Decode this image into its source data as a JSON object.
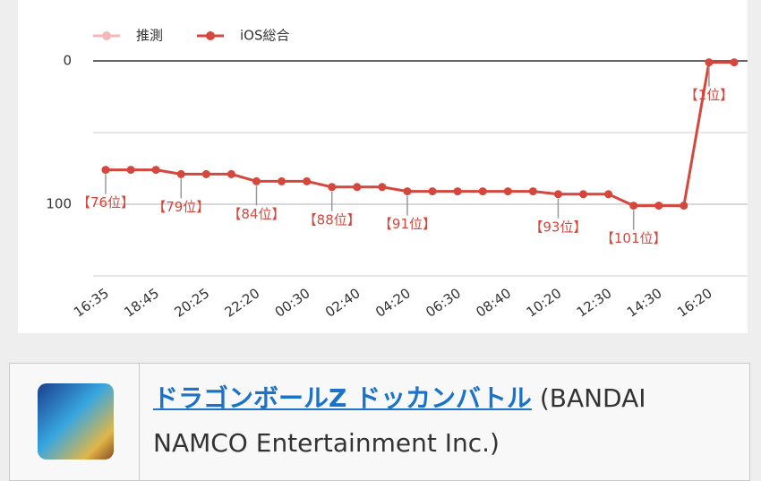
{
  "chart_data": {
    "type": "line",
    "categories": [
      "16:35",
      null,
      "18:45",
      null,
      "20:25",
      null,
      "22:20",
      null,
      "00:30",
      null,
      "02:40",
      null,
      "04:20",
      null,
      "06:30",
      null,
      "08:40",
      null,
      "10:20",
      null,
      "12:30",
      null,
      "14:30",
      null,
      "16:20",
      null
    ],
    "series": [
      {
        "name": "推測",
        "color": "#f4b8bb",
        "values": [
          null,
          null,
          null,
          null,
          null,
          null,
          null,
          null,
          null,
          null,
          null,
          null,
          null,
          null,
          null,
          null,
          null,
          null,
          null,
          null,
          null,
          null,
          null,
          null,
          null,
          null
        ]
      },
      {
        "name": "iOS総合",
        "color": "#d5473d",
        "values": [
          76,
          76,
          76,
          79,
          79,
          79,
          84,
          84,
          84,
          88,
          88,
          88,
          91,
          91,
          91,
          91,
          91,
          91,
          93,
          93,
          93,
          101,
          101,
          101,
          1,
          1
        ],
        "value_labels": [
          "【76位】",
          null,
          null,
          "【79位】",
          null,
          null,
          "【84位】",
          null,
          null,
          "【88位】",
          null,
          null,
          "【91位】",
          null,
          null,
          null,
          null,
          null,
          "【93位】",
          null,
          null,
          "【101位】",
          null,
          null,
          "【1位】",
          null
        ]
      }
    ],
    "ylim": [
      0,
      150
    ],
    "y_inverted": true,
    "yticks": [
      0,
      100
    ],
    "minor_yticks": [
      50,
      150
    ],
    "grid": true,
    "legend": "top-left"
  },
  "app": {
    "title": "ドラゴンボールZ ドッカンバトル",
    "publisher": "(BANDAI NAMCO Entertainment Inc.)"
  }
}
